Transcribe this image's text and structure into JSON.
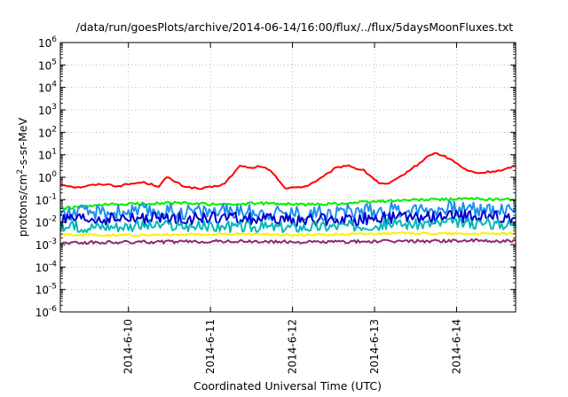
{
  "chart_data": {
    "type": "line",
    "title": "/data/run/goesPlots/archive/2014-06-14/16:00/flux/../flux/5daysMoonFluxes.txt",
    "xlabel": "Coordinated Universal Time (UTC)",
    "ylabel": {
      "prefix": "protons/cm",
      "sup": "2",
      "suffix": "-s-sr-MeV"
    },
    "yscale": "log",
    "ylim": [
      1e-06,
      1000000.0
    ],
    "y_ticks": [
      {
        "base": "10",
        "exp": "6"
      },
      {
        "base": "10",
        "exp": "5"
      },
      {
        "base": "10",
        "exp": "4"
      },
      {
        "base": "10",
        "exp": "3"
      },
      {
        "base": "10",
        "exp": "2"
      },
      {
        "base": "10",
        "exp": "1"
      },
      {
        "base": "10",
        "exp": "0"
      },
      {
        "base": "10",
        "exp": "-1"
      },
      {
        "base": "10",
        "exp": "-2"
      },
      {
        "base": "10",
        "exp": "-3"
      },
      {
        "base": "10",
        "exp": "-4"
      },
      {
        "base": "10",
        "exp": "-5"
      },
      {
        "base": "10",
        "exp": "-6"
      }
    ],
    "x_ticks": [
      "2014-6-10",
      "2014-6-11",
      "2014-6-12",
      "2014-6-13",
      "2014-6-14"
    ],
    "xlim_days": [
      0,
      5.55
    ],
    "x_tick_days": [
      0.83,
      1.83,
      2.83,
      3.83,
      4.83
    ],
    "grid": true,
    "series": [
      {
        "color": "#ff0000",
        "noise": 0,
        "x": [
          0,
          0.2,
          0.4,
          0.55,
          0.7,
          0.85,
          1.0,
          1.2,
          1.3,
          1.5,
          1.7,
          1.9,
          2.0,
          2.2,
          2.3,
          2.4,
          2.5,
          2.6,
          2.7,
          2.75,
          2.85,
          3.0,
          3.2,
          3.35,
          3.5,
          3.6,
          3.7,
          3.8,
          3.9,
          4.0,
          4.1,
          4.25,
          4.35,
          4.45,
          4.55,
          4.6,
          4.7,
          4.8,
          4.95,
          5.1,
          5.25,
          5.4,
          5.5,
          5.55
        ],
        "values": [
          0.5,
          0.35,
          0.45,
          0.5,
          0.4,
          0.5,
          0.6,
          0.4,
          1.0,
          0.4,
          0.3,
          0.4,
          0.5,
          3.5,
          2.5,
          3.0,
          2.5,
          1.5,
          0.5,
          0.3,
          0.35,
          0.4,
          1.0,
          2.5,
          3.5,
          2.5,
          2.0,
          1.0,
          0.5,
          0.5,
          0.8,
          2.0,
          3.5,
          7.0,
          12.0,
          11.0,
          8.0,
          5.0,
          2.0,
          1.5,
          1.8,
          2.0,
          3.0,
          3.0
        ]
      },
      {
        "color": "#00ee00",
        "noise": 0.06,
        "x": [
          0,
          0.6,
          1.2,
          1.5,
          2.0,
          2.5,
          3.0,
          3.5,
          4.0,
          4.5,
          5.0,
          5.55
        ],
        "values": [
          0.04,
          0.06,
          0.07,
          0.07,
          0.06,
          0.07,
          0.06,
          0.07,
          0.09,
          0.1,
          0.11,
          0.1
        ]
      },
      {
        "color": "#1e8ff0",
        "noise": 0.35,
        "x": [
          0,
          1.0,
          2.0,
          3.0,
          4.0,
          5.0,
          5.55
        ],
        "values": [
          0.025,
          0.03,
          0.03,
          0.025,
          0.035,
          0.04,
          0.035
        ]
      },
      {
        "color": "#0000cc",
        "noise": 0.28,
        "x": [
          0,
          1.0,
          2.0,
          3.0,
          4.0,
          5.0,
          5.55
        ],
        "values": [
          0.012,
          0.014,
          0.015,
          0.012,
          0.015,
          0.018,
          0.015
        ]
      },
      {
        "color": "#00b8b8",
        "noise": 0.25,
        "x": [
          0,
          1.0,
          2.0,
          3.0,
          4.0,
          5.0,
          5.55
        ],
        "values": [
          0.006,
          0.007,
          0.006,
          0.006,
          0.008,
          0.009,
          0.008
        ]
      },
      {
        "color": "#ffee00",
        "noise": 0.05,
        "x": [
          0,
          1.0,
          2.0,
          3.0,
          4.0,
          5.0,
          5.55
        ],
        "values": [
          0.0028,
          0.0026,
          0.003,
          0.0027,
          0.0032,
          0.0031,
          0.003
        ]
      },
      {
        "color": "#8b2a6a",
        "noise": 0.07,
        "x": [
          0,
          1.0,
          2.0,
          3.0,
          4.0,
          5.0,
          5.55
        ],
        "values": [
          0.0012,
          0.0013,
          0.0014,
          0.0013,
          0.0014,
          0.0015,
          0.0014
        ]
      }
    ]
  }
}
